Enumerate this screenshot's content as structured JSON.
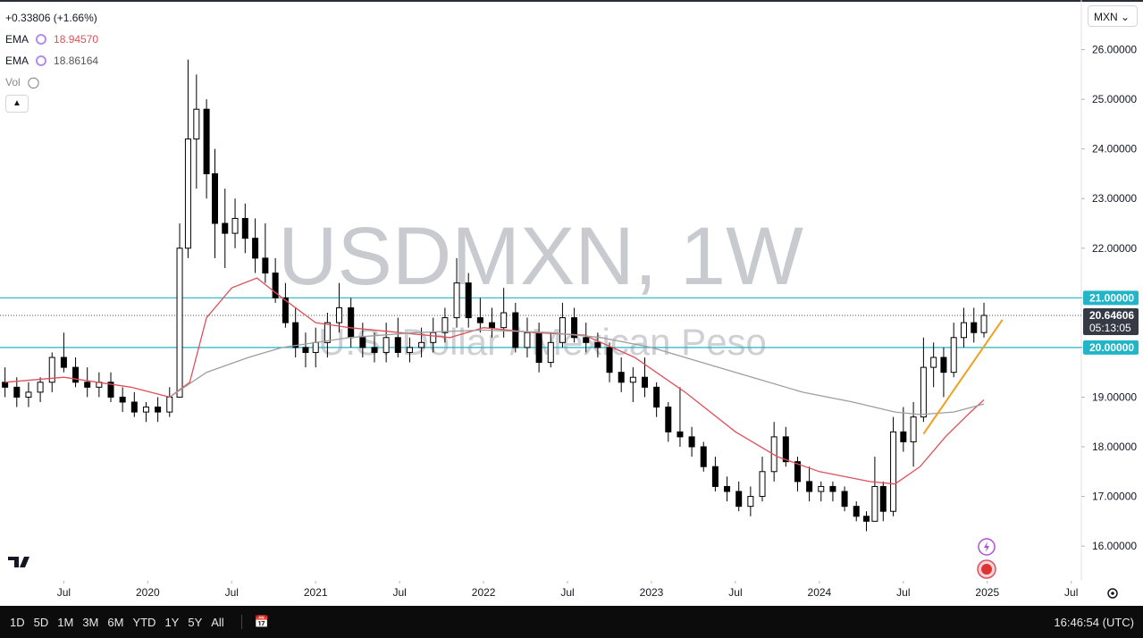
{
  "chart_data": {
    "type": "candlestick",
    "title": "USDMXN, 1W",
    "subtitle": "U.S. Dollar / Mexican Peso",
    "change_label": "+0.33806 (+1.66%)",
    "currency": "MXN",
    "legend": [
      {
        "name": "EMA",
        "value_label": "18.94570"
      },
      {
        "name": "EMA",
        "value_label": "18.86164"
      },
      {
        "name": "Vol"
      }
    ],
    "xlim": [
      2019.12,
      2025.56
    ],
    "ylim": [
      15.3,
      27.0
    ],
    "xticks": [
      {
        "value": 2019.5,
        "label": "Jul"
      },
      {
        "value": 2020,
        "label": "2020"
      },
      {
        "value": 2020.5,
        "label": "Jul"
      },
      {
        "value": 2021,
        "label": "2021"
      },
      {
        "value": 2021.5,
        "label": "Jul"
      },
      {
        "value": 2022,
        "label": "2022"
      },
      {
        "value": 2022.5,
        "label": "Jul"
      },
      {
        "value": 2023,
        "label": "2023"
      },
      {
        "value": 2023.5,
        "label": "Jul"
      },
      {
        "value": 2024,
        "label": "2024"
      },
      {
        "value": 2024.5,
        "label": "Jul"
      },
      {
        "value": 2025,
        "label": "2025"
      },
      {
        "value": 2025.5,
        "label": "Jul"
      }
    ],
    "yticks": [
      {
        "value": 16,
        "label": "16.00000"
      },
      {
        "value": 17,
        "label": "17.00000"
      },
      {
        "value": 18,
        "label": "18.00000"
      },
      {
        "value": 19,
        "label": "19.00000"
      },
      {
        "value": 20,
        "label": "20.00000"
      },
      {
        "value": 21,
        "label": "21.00000"
      },
      {
        "value": 22,
        "label": "22.00000"
      },
      {
        "value": 23,
        "label": "23.00000"
      },
      {
        "value": 24,
        "label": "24.00000"
      },
      {
        "value": 25,
        "label": "25.00000"
      },
      {
        "value": 26,
        "label": "26.00000"
      }
    ],
    "x": [
      2019.15,
      2019.22,
      2019.29,
      2019.36,
      2019.43,
      2019.5,
      2019.57,
      2019.64,
      2019.71,
      2019.78,
      2019.85,
      2019.92,
      2019.99,
      2020.06,
      2020.13,
      2020.19,
      2020.24,
      2020.29,
      2020.35,
      2020.4,
      2020.46,
      2020.52,
      2020.58,
      2020.64,
      2020.7,
      2020.76,
      2020.82,
      2020.88,
      2020.94,
      2021.0,
      2021.07,
      2021.14,
      2021.21,
      2021.28,
      2021.35,
      2021.42,
      2021.49,
      2021.56,
      2021.63,
      2021.7,
      2021.77,
      2021.84,
      2021.91,
      2021.98,
      2022.05,
      2022.12,
      2022.19,
      2022.26,
      2022.33,
      2022.4,
      2022.47,
      2022.54,
      2022.61,
      2022.68,
      2022.75,
      2022.82,
      2022.89,
      2022.96,
      2023.03,
      2023.1,
      2023.17,
      2023.24,
      2023.31,
      2023.38,
      2023.45,
      2023.52,
      2023.59,
      2023.66,
      2023.73,
      2023.8,
      2023.87,
      2023.94,
      2024.01,
      2024.08,
      2024.15,
      2024.22,
      2024.28,
      2024.33,
      2024.38,
      2024.44,
      2024.5,
      2024.56,
      2024.62,
      2024.68,
      2024.74,
      2024.8,
      2024.86,
      2024.92,
      2024.98
    ],
    "open": [
      19.3,
      19.2,
      19.0,
      19.1,
      19.3,
      19.8,
      19.6,
      19.3,
      19.2,
      19.3,
      19.0,
      18.9,
      18.7,
      18.8,
      18.7,
      19.0,
      22.0,
      24.2,
      24.8,
      23.5,
      22.5,
      22.3,
      22.6,
      22.2,
      21.8,
      21.5,
      21.0,
      20.5,
      20.0,
      19.9,
      20.1,
      20.5,
      20.8,
      20.2,
      20.0,
      19.9,
      20.2,
      19.9,
      20.0,
      20.1,
      20.3,
      20.6,
      21.3,
      20.6,
      20.5,
      20.4,
      20.7,
      20.0,
      20.3,
      19.7,
      20.1,
      20.6,
      20.2,
      20.1,
      20.0,
      19.5,
      19.3,
      19.4,
      19.2,
      18.8,
      18.3,
      18.2,
      18.0,
      17.6,
      17.2,
      17.1,
      16.8,
      17.0,
      17.5,
      18.2,
      17.7,
      17.3,
      17.1,
      17.2,
      17.1,
      16.8,
      16.6,
      16.5,
      17.2,
      16.7,
      18.3,
      18.1,
      18.6,
      19.6,
      19.8,
      19.5,
      20.2,
      20.5,
      20.3
    ],
    "high": [
      19.6,
      19.4,
      19.3,
      19.4,
      19.9,
      20.3,
      19.8,
      19.6,
      19.5,
      19.5,
      19.2,
      19.1,
      18.9,
      19.0,
      19.2,
      22.5,
      25.8,
      25.5,
      25.0,
      24.0,
      23.2,
      23.0,
      22.9,
      22.6,
      22.5,
      21.8,
      21.3,
      20.8,
      20.3,
      20.4,
      20.7,
      21.3,
      21.0,
      20.5,
      20.3,
      20.5,
      20.6,
      20.2,
      20.4,
      20.6,
      20.8,
      21.8,
      21.5,
      21.0,
      20.8,
      21.2,
      20.9,
      20.6,
      20.5,
      20.3,
      20.9,
      20.8,
      20.5,
      20.3,
      20.1,
      19.8,
      19.6,
      19.8,
      19.3,
      18.9,
      19.2,
      18.4,
      18.1,
      17.8,
      17.4,
      17.3,
      17.2,
      17.8,
      18.5,
      18.4,
      17.8,
      17.6,
      17.3,
      17.3,
      17.2,
      16.9,
      16.7,
      17.8,
      17.3,
      18.6,
      18.8,
      18.9,
      20.2,
      20.1,
      20.0,
      20.5,
      20.8,
      20.8,
      20.9
    ],
    "low": [
      19.0,
      18.8,
      18.8,
      18.9,
      19.1,
      19.5,
      19.2,
      19.0,
      19.0,
      18.9,
      18.7,
      18.6,
      18.5,
      18.5,
      18.6,
      19.0,
      21.8,
      23.2,
      23.0,
      21.8,
      21.6,
      22.0,
      21.9,
      21.5,
      21.3,
      20.9,
      20.4,
      19.8,
      19.6,
      19.6,
      19.8,
      20.3,
      20.0,
      19.8,
      19.7,
      19.7,
      19.8,
      19.7,
      19.8,
      19.9,
      20.1,
      20.4,
      20.4,
      20.3,
      20.2,
      20.2,
      19.9,
      19.8,
      19.5,
      19.6,
      20.0,
      20.1,
      19.9,
      19.8,
      19.3,
      19.1,
      18.9,
      19.0,
      18.6,
      18.1,
      18.0,
      17.8,
      17.5,
      17.1,
      16.9,
      16.7,
      16.6,
      16.9,
      17.3,
      17.6,
      17.1,
      16.9,
      16.9,
      16.9,
      16.7,
      16.5,
      16.3,
      16.5,
      16.5,
      16.6,
      17.9,
      17.6,
      18.5,
      19.2,
      19.0,
      19.4,
      20.0,
      20.1,
      20.2
    ],
    "close": [
      19.2,
      19.0,
      19.1,
      19.3,
      19.8,
      19.6,
      19.3,
      19.2,
      19.3,
      19.0,
      18.9,
      18.7,
      18.8,
      18.7,
      19.0,
      22.0,
      24.2,
      24.8,
      23.5,
      22.5,
      22.3,
      22.6,
      22.2,
      21.8,
      21.5,
      21.0,
      20.5,
      20.0,
      19.9,
      20.1,
      20.5,
      20.8,
      20.2,
      20.0,
      19.9,
      20.2,
      19.9,
      20.0,
      20.1,
      20.3,
      20.6,
      21.3,
      20.6,
      20.5,
      20.4,
      20.7,
      20.0,
      20.3,
      19.7,
      20.1,
      20.6,
      20.2,
      20.1,
      20.0,
      19.5,
      19.3,
      19.4,
      19.2,
      18.8,
      18.3,
      18.2,
      18.0,
      17.6,
      17.2,
      17.1,
      16.8,
      17.0,
      17.5,
      18.2,
      17.7,
      17.3,
      17.1,
      17.2,
      17.1,
      16.8,
      16.6,
      16.5,
      17.2,
      16.7,
      18.3,
      18.1,
      18.6,
      19.6,
      19.8,
      19.5,
      20.2,
      20.5,
      20.3,
      20.64606
    ],
    "series": [
      {
        "name": "EMA",
        "color": "#e0505a",
        "x": [
          2019.15,
          2019.5,
          2019.9,
          2020.13,
          2020.25,
          2020.35,
          2020.5,
          2020.65,
          2020.8,
          2021.0,
          2021.2,
          2021.5,
          2021.8,
          2022.0,
          2022.3,
          2022.6,
          2022.9,
          2023.2,
          2023.5,
          2023.75,
          2024.0,
          2024.3,
          2024.45,
          2024.6,
          2024.75,
          2024.9,
          2024.98
        ],
        "values": [
          19.3,
          19.4,
          19.2,
          19.0,
          19.3,
          20.6,
          21.2,
          21.4,
          21.0,
          20.5,
          20.4,
          20.3,
          20.2,
          20.4,
          20.3,
          20.25,
          19.8,
          19.1,
          18.3,
          17.8,
          17.5,
          17.3,
          17.25,
          17.6,
          18.2,
          18.7,
          18.9457
        ]
      },
      {
        "name": "EMA",
        "color": "#9e9e9e",
        "x": [
          2020.13,
          2020.35,
          2020.6,
          2020.8,
          2021.2,
          2021.6,
          2022.0,
          2022.4,
          2022.7,
          2023.0,
          2023.3,
          2023.6,
          2023.9,
          2024.2,
          2024.45,
          2024.6,
          2024.8,
          2024.98
        ],
        "values": [
          19.0,
          19.5,
          19.8,
          20.0,
          20.2,
          20.3,
          20.35,
          20.3,
          20.2,
          20.0,
          19.7,
          19.4,
          19.1,
          18.9,
          18.7,
          18.65,
          18.7,
          18.86164
        ]
      }
    ],
    "trendline": {
      "color": "#f0a020",
      "x": [
        2024.62,
        2025.09
      ],
      "values": [
        18.26,
        20.56
      ]
    },
    "hlines": {
      "color": "#22b5c8",
      "values": [
        21,
        20
      ]
    },
    "price_tags": [
      {
        "value": 21,
        "label": "21.00000",
        "color": "#22b5c8"
      },
      {
        "value": 20.64606,
        "label": "20.64606",
        "countdown": "05:13:05",
        "color": "#363a45"
      },
      {
        "value": 20,
        "label": "20.00000",
        "color": "#22b5c8"
      }
    ],
    "ranges": [
      "1D",
      "5D",
      "1M",
      "3M",
      "6M",
      "YTD",
      "1Y",
      "5Y",
      "All"
    ],
    "clock": "16:46:54 (UTC)"
  }
}
